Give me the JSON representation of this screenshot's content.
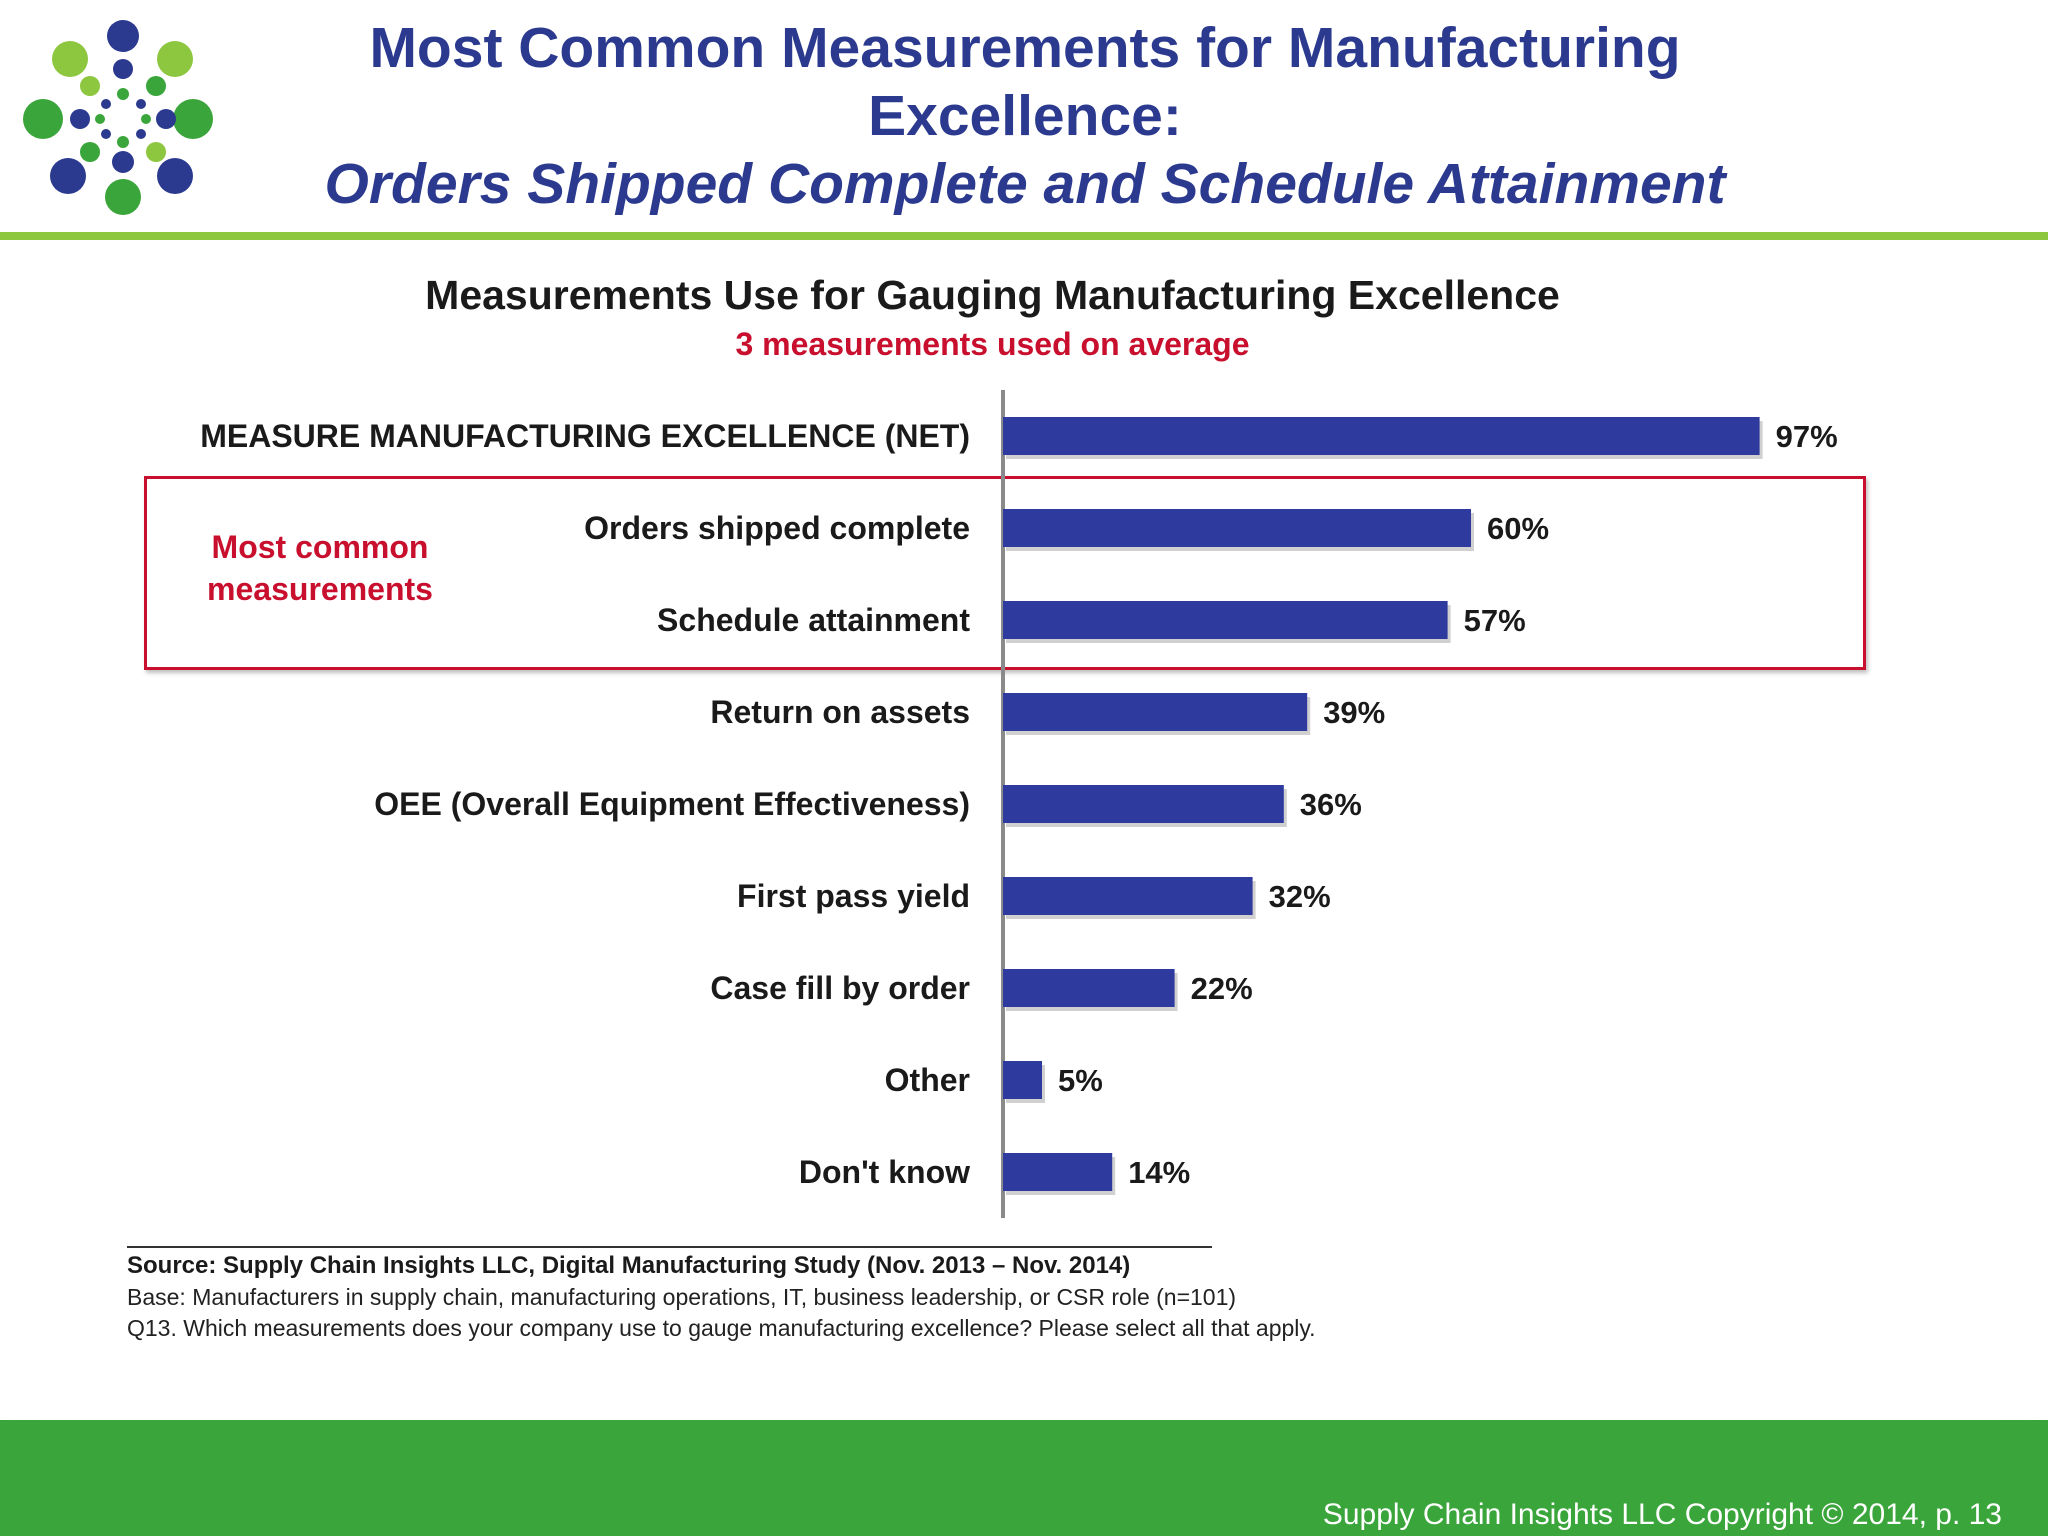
{
  "header": {
    "title_line1": "Most Common Measurements for Manufacturing",
    "title_line2": "Excellence:",
    "title_line3": "Orders Shipped Complete and Schedule Attainment"
  },
  "colors": {
    "title": "#2b3a8f",
    "bar": "#2e3a9e",
    "accent_red": "#c8102e",
    "green": "#3aa53a",
    "light_green": "#8dc63f"
  },
  "highlight": {
    "label_line1": "Most common",
    "label_line2": "measurements"
  },
  "chart_data": {
    "type": "bar",
    "orientation": "horizontal",
    "title": "Measurements Use for Gauging Manufacturing Excellence",
    "subtitle": "3 measurements used on average",
    "categories": [
      "MEASURE MANUFACTURING EXCELLENCE (NET)",
      "Orders shipped complete",
      "Schedule attainment",
      "Return on assets",
      "OEE (Overall Equipment Effectiveness)",
      "First pass yield",
      "Case fill by order",
      "Other",
      "Don't know"
    ],
    "values": [
      97,
      60,
      57,
      39,
      36,
      32,
      22,
      5,
      14
    ],
    "value_labels": [
      "97%",
      "60%",
      "57%",
      "39%",
      "36%",
      "32%",
      "22%",
      "5%",
      "14%"
    ],
    "unit": "%",
    "xlim": [
      0,
      100
    ],
    "grid": false,
    "legend": "none"
  },
  "source": {
    "line1": "Source:  Supply Chain Insights LLC, Digital Manufacturing Study (Nov. 2013 – Nov. 2014)",
    "line2": "Base: Manufacturers in supply chain, manufacturing operations, IT, business leadership, or CSR role (n=101)",
    "line3": "Q13. Which measurements does your company use to gauge manufacturing excellence? Please select all that apply."
  },
  "footer": {
    "copyright": "Supply Chain Insights LLC Copyright © 2014, p. 13"
  }
}
